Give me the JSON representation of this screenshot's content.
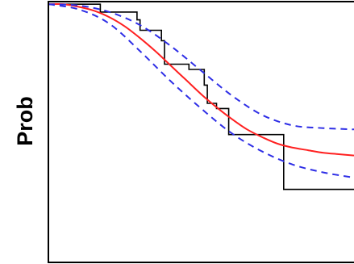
{
  "colors": {
    "background": "#ffffff",
    "axes": "#000000",
    "step": "#000000",
    "fit": "#ff2020",
    "ci": "#2e2ee6"
  },
  "chart_data": {
    "type": "line",
    "title": "",
    "xlabel": "",
    "ylabel": "Prob",
    "xlim": [
      0,
      100
    ],
    "ylim": [
      0,
      1
    ],
    "grid": false,
    "legend": "none",
    "series": [
      {
        "kind": "step",
        "style": "solid",
        "color": "#000000",
        "points": [
          [
            0,
            0.99
          ],
          [
            17,
            0.99
          ],
          [
            17,
            0.96
          ],
          [
            29,
            0.96
          ],
          [
            29,
            0.93
          ],
          [
            30,
            0.93
          ],
          [
            30,
            0.89
          ],
          [
            37,
            0.89
          ],
          [
            37,
            0.85
          ],
          [
            38,
            0.85
          ],
          [
            38,
            0.76
          ],
          [
            46,
            0.76
          ],
          [
            46,
            0.74
          ],
          [
            51,
            0.74
          ],
          [
            51,
            0.68
          ],
          [
            52,
            0.68
          ],
          [
            52,
            0.61
          ],
          [
            55,
            0.61
          ],
          [
            55,
            0.59
          ],
          [
            59,
            0.59
          ],
          [
            59,
            0.49
          ],
          [
            77,
            0.49
          ],
          [
            77,
            0.28
          ],
          [
            100,
            0.28
          ]
        ]
      },
      {
        "kind": "smooth",
        "style": "solid",
        "color": "#ff2020",
        "points": [
          [
            0,
            0.99
          ],
          [
            5,
            0.99
          ],
          [
            10,
            0.98
          ],
          [
            15,
            0.965
          ],
          [
            20,
            0.94
          ],
          [
            25,
            0.905
          ],
          [
            30,
            0.86
          ],
          [
            35,
            0.81
          ],
          [
            40,
            0.755
          ],
          [
            45,
            0.7
          ],
          [
            50,
            0.645
          ],
          [
            55,
            0.595
          ],
          [
            60,
            0.55
          ],
          [
            65,
            0.51
          ],
          [
            70,
            0.48
          ],
          [
            75,
            0.455
          ],
          [
            80,
            0.44
          ],
          [
            85,
            0.43
          ],
          [
            90,
            0.42
          ],
          [
            95,
            0.415
          ],
          [
            100,
            0.41
          ]
        ]
      },
      {
        "kind": "smooth",
        "style": "dashed",
        "color": "#2e2ee6",
        "points": [
          [
            0,
            0.99
          ],
          [
            10,
            0.985
          ],
          [
            20,
            0.96
          ],
          [
            30,
            0.91
          ],
          [
            40,
            0.83
          ],
          [
            50,
            0.735
          ],
          [
            60,
            0.64
          ],
          [
            70,
            0.565
          ],
          [
            80,
            0.525
          ],
          [
            90,
            0.515
          ],
          [
            100,
            0.51
          ]
        ]
      },
      {
        "kind": "smooth",
        "style": "dashed",
        "color": "#2e2ee6",
        "points": [
          [
            0,
            0.99
          ],
          [
            10,
            0.97
          ],
          [
            20,
            0.915
          ],
          [
            30,
            0.81
          ],
          [
            40,
            0.695
          ],
          [
            50,
            0.59
          ],
          [
            60,
            0.495
          ],
          [
            70,
            0.425
          ],
          [
            80,
            0.375
          ],
          [
            90,
            0.345
          ],
          [
            100,
            0.325
          ]
        ]
      }
    ]
  }
}
